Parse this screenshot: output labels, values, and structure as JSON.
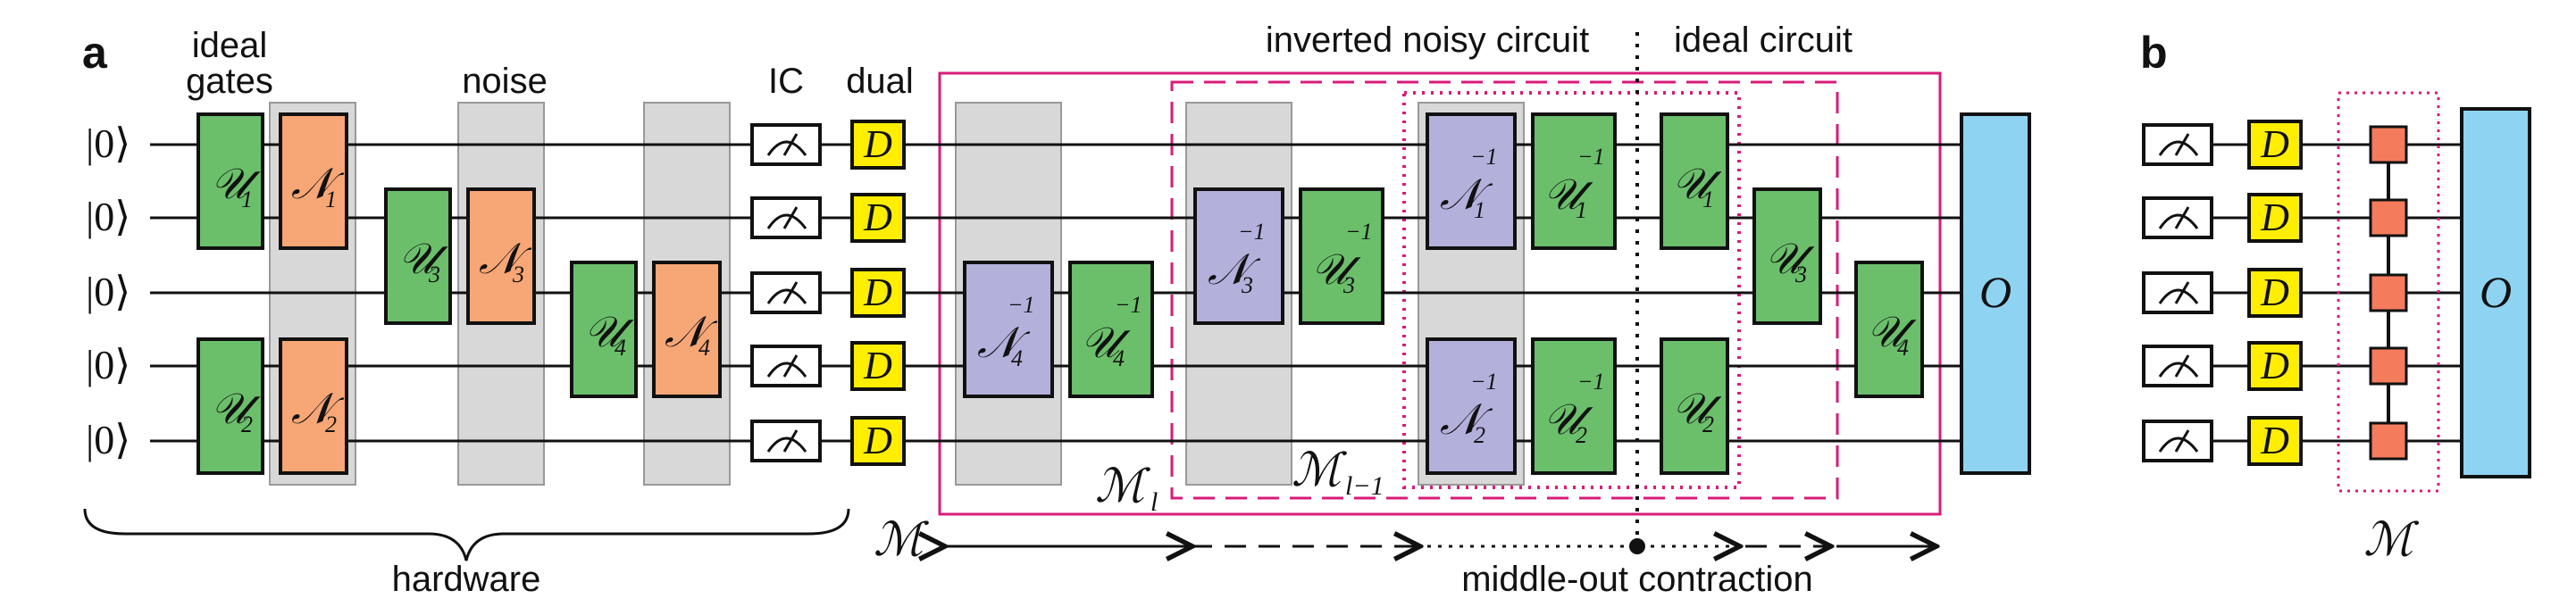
{
  "panel_labels": {
    "a": "a",
    "b": "b"
  },
  "headers": {
    "ideal_gates_line1": "ideal",
    "ideal_gates_line2": "gates",
    "noise": "noise",
    "ic": "IC",
    "dual": "dual",
    "inverted_noisy_circuit": "inverted noisy circuit",
    "ideal_circuit": "ideal circuit",
    "hardware": "hardware",
    "middle_out_contraction": "middle-out contraction"
  },
  "input_state": "|0⟩",
  "gate_symbols": {
    "unitary": "𝒰",
    "noise": "𝒩",
    "dual": "D",
    "observable": "O",
    "inverse_exponent": "−1"
  },
  "gates": {
    "u1": "1",
    "u2": "2",
    "u3": "3",
    "u4": "4",
    "n1": "1",
    "n2": "2",
    "n3": "3",
    "n4": "4"
  },
  "map_labels": {
    "M": "ℳ",
    "Ml": "ℳ",
    "Ml_sub": "l",
    "Ml1": "ℳ",
    "Ml1_sub": "l−1"
  },
  "colors": {
    "unitary": "#6bbf6b",
    "noise": "#f7a676",
    "inverse_noise": "#b3b0dc",
    "dual": "#ffee00",
    "observable": "#8fd3f2",
    "noise_shade": "#d8d8d8",
    "map_frame": "#d81b7a",
    "mps_tensor": "#f47c5c"
  }
}
